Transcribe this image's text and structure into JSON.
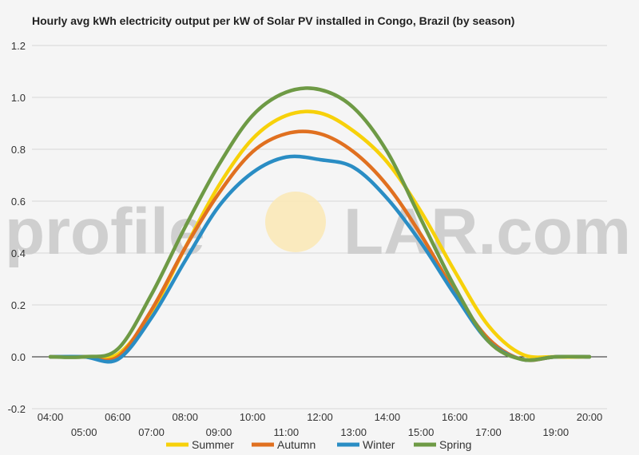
{
  "chart_data": {
    "type": "line",
    "title": "Hourly avg kWh electricity output per kW of Solar PV installed in Congo, Brazil (by season)",
    "xlabel": "",
    "ylabel": "",
    "ylim": [
      -0.2,
      1.2
    ],
    "yticks": [
      "-0.2",
      "0.0",
      "0.2",
      "0.4",
      "0.6",
      "0.8",
      "1.0",
      "1.2"
    ],
    "x": [
      "04:00",
      "05:00",
      "06:00",
      "07:00",
      "08:00",
      "09:00",
      "10:00",
      "11:00",
      "12:00",
      "13:00",
      "14:00",
      "15:00",
      "16:00",
      "17:00",
      "18:00",
      "19:00",
      "20:00"
    ],
    "grid": true,
    "legend_position": "bottom",
    "series": [
      {
        "name": "Summer",
        "color": "#f7d10a",
        "values": [
          0.0,
          0.0,
          0.01,
          0.17,
          0.42,
          0.66,
          0.84,
          0.93,
          0.94,
          0.87,
          0.75,
          0.56,
          0.33,
          0.12,
          0.01,
          0.0,
          0.0
        ]
      },
      {
        "name": "Autumn",
        "color": "#e07020",
        "values": [
          0.0,
          0.0,
          0.0,
          0.18,
          0.42,
          0.63,
          0.79,
          0.86,
          0.86,
          0.79,
          0.66,
          0.47,
          0.25,
          0.07,
          -0.01,
          0.0,
          0.0
        ]
      },
      {
        "name": "Winter",
        "color": "#2a8dc4",
        "values": [
          0.0,
          0.0,
          -0.01,
          0.15,
          0.37,
          0.58,
          0.71,
          0.77,
          0.76,
          0.73,
          0.61,
          0.44,
          0.24,
          0.06,
          -0.01,
          0.0,
          0.0
        ]
      },
      {
        "name": "Spring",
        "color": "#6e9a45",
        "values": [
          0.0,
          0.0,
          0.03,
          0.24,
          0.5,
          0.74,
          0.93,
          1.02,
          1.03,
          0.96,
          0.79,
          0.53,
          0.27,
          0.06,
          -0.01,
          0.0,
          0.0
        ]
      }
    ]
  },
  "watermark": {
    "left": "profile",
    "right": "LAR.com"
  }
}
